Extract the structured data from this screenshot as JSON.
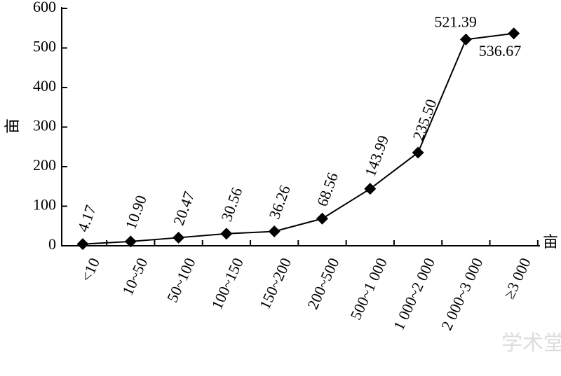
{
  "chart_data": {
    "type": "line",
    "y_label": "亩",
    "x_label": "亩",
    "categories": [
      "<10",
      "10~50",
      "50~100",
      "100~150",
      "150~200",
      "200~500",
      "500~1 000",
      "1 000~2 000",
      "2 000~3 000",
      "≥3 000"
    ],
    "series": [
      {
        "color": "#000000",
        "values": [
          4.17,
          10.9,
          20.47,
          30.56,
          36.26,
          68.56,
          143.99,
          235.5,
          521.39,
          536.67
        ],
        "value_labels": [
          "4.17",
          "10.90",
          "20.47",
          "30.56",
          "36.26",
          "68.56",
          "143.99",
          "235.50",
          "521.39",
          "536.67"
        ]
      }
    ],
    "ylim": [
      0,
      600
    ],
    "yticks": [
      0,
      100,
      200,
      300,
      400,
      500,
      600
    ],
    "watermark": "学术堂"
  }
}
